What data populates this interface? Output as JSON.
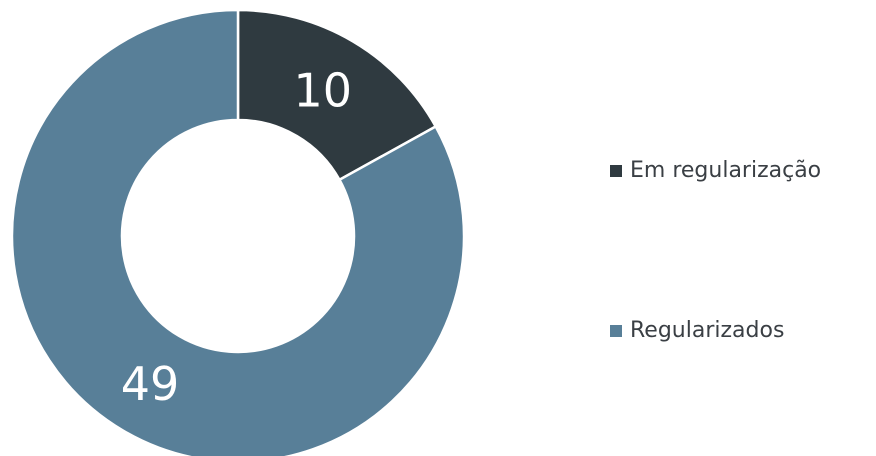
{
  "chart_data": {
    "type": "pie",
    "donut": true,
    "title": "",
    "legend_position": "right",
    "slices": [
      {
        "label": "Em regularização",
        "value": 10,
        "color": "#2f3a40"
      },
      {
        "label": "Regularizados",
        "value": 49,
        "color": "#587f98"
      }
    ]
  }
}
